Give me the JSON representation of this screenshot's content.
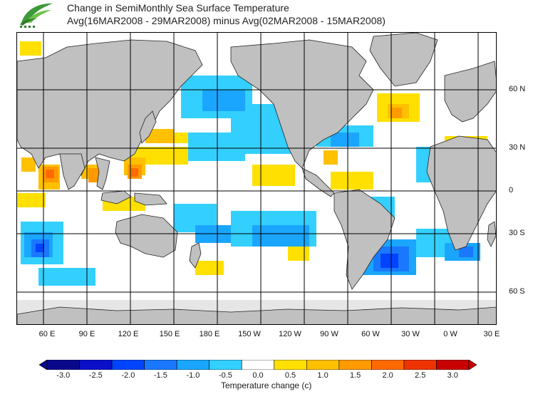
{
  "header": {
    "title_line1": "Change in SemiMonthly Sea Surface Temperature",
    "title_line2": "Avg(16MAR2008 - 29MAR2008) minus Avg(02MAR2008 - 15MAR2008)"
  },
  "map": {
    "longitude_labels": [
      "60 E",
      "90 E",
      "120 E",
      "150 E",
      "180 E",
      "150 W",
      "120 W",
      "90 W",
      "60 W",
      "30 W",
      "0 W",
      "30 E"
    ],
    "latitude_labels": [
      "60 N",
      "30 N",
      "0",
      "30 S",
      "60 S"
    ],
    "land_color": "#c0c0c0",
    "ice_color": "#e6e6e6"
  },
  "colorbar": {
    "ticks": [
      "-3.0",
      "-2.5",
      "-2.0",
      "-1.5",
      "-1.0",
      "-0.5",
      "0.0",
      "0.5",
      "1.0",
      "1.5",
      "2.0",
      "2.5",
      "3.0"
    ],
    "colors": [
      "#08088a",
      "#0a10c8",
      "#0044ff",
      "#1a78ff",
      "#1aa6ff",
      "#33d0ff",
      "#ffffff",
      "#ffe000",
      "#ffc000",
      "#ff9a00",
      "#ff6a00",
      "#ee3300",
      "#c80000"
    ],
    "label": "Temperature change  (c)"
  }
}
